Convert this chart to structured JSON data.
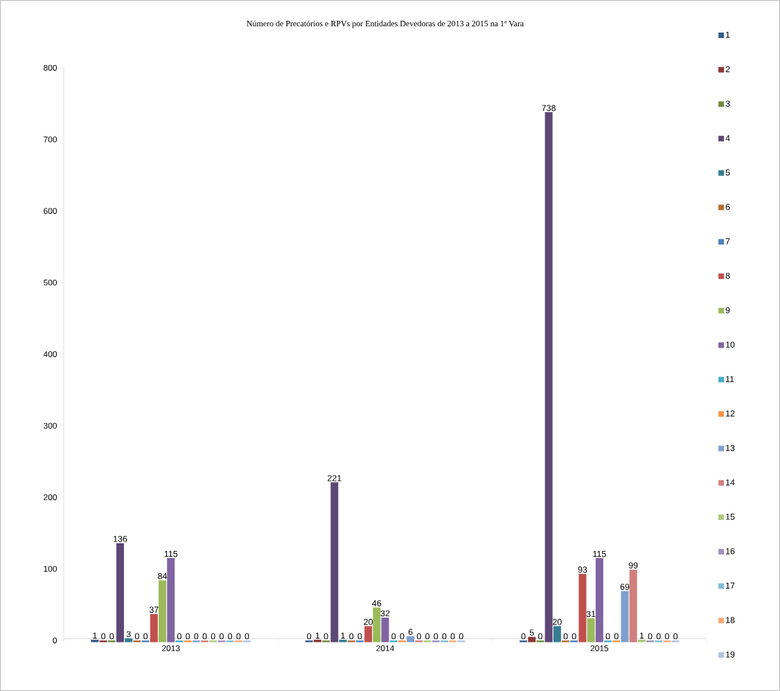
{
  "chart_data": {
    "type": "bar",
    "title": "Número de Precatórios e RPVs  por Entidades Devedoras de 2013 a 2015 na 1ª Vara",
    "categories": [
      "2013",
      "2014",
      "2015"
    ],
    "series": [
      {
        "name": "1",
        "color": "#385d8a",
        "values": [
          1,
          0,
          0
        ]
      },
      {
        "name": "2",
        "color": "#8c3836",
        "values": [
          0,
          1,
          5
        ]
      },
      {
        "name": "3",
        "color": "#71893f",
        "values": [
          0,
          0,
          0
        ]
      },
      {
        "name": "4",
        "color": "#5c4776",
        "values": [
          136,
          221,
          738
        ]
      },
      {
        "name": "5",
        "color": "#357d91",
        "values": [
          3,
          1,
          20
        ]
      },
      {
        "name": "6",
        "color": "#b66d31",
        "values": [
          0,
          0,
          0
        ]
      },
      {
        "name": "7",
        "color": "#4f81bd",
        "values": [
          0,
          0,
          0
        ]
      },
      {
        "name": "8",
        "color": "#c0504d",
        "values": [
          37,
          20,
          93
        ]
      },
      {
        "name": "9",
        "color": "#9bbb59",
        "values": [
          84,
          46,
          31
        ]
      },
      {
        "name": "10",
        "color": "#8064a2",
        "values": [
          115,
          32,
          115
        ]
      },
      {
        "name": "11",
        "color": "#4bacc6",
        "values": [
          0,
          0,
          0
        ]
      },
      {
        "name": "12",
        "color": "#f79646",
        "values": [
          0,
          0,
          0
        ]
      },
      {
        "name": "13",
        "color": "#7f9fcf",
        "values": [
          0,
          6,
          69
        ]
      },
      {
        "name": "14",
        "color": "#d07f7d",
        "values": [
          0,
          0,
          99
        ]
      },
      {
        "name": "15",
        "color": "#afc97a",
        "values": [
          0,
          0,
          1
        ]
      },
      {
        "name": "16",
        "color": "#a18fbc",
        "values": [
          0,
          0,
          0
        ]
      },
      {
        "name": "17",
        "color": "#7fbcd2",
        "values": [
          0,
          0,
          0
        ]
      },
      {
        "name": "18",
        "color": "#f9ab73",
        "values": [
          0,
          0,
          0
        ]
      },
      {
        "name": "19",
        "color": "#b3c3e0",
        "values": [
          0,
          0,
          0
        ]
      }
    ],
    "ylim": [
      0,
      800
    ],
    "yticks": [
      0,
      100,
      200,
      300,
      400,
      500,
      600,
      700,
      800
    ],
    "data_labels": true,
    "legend": "right"
  }
}
